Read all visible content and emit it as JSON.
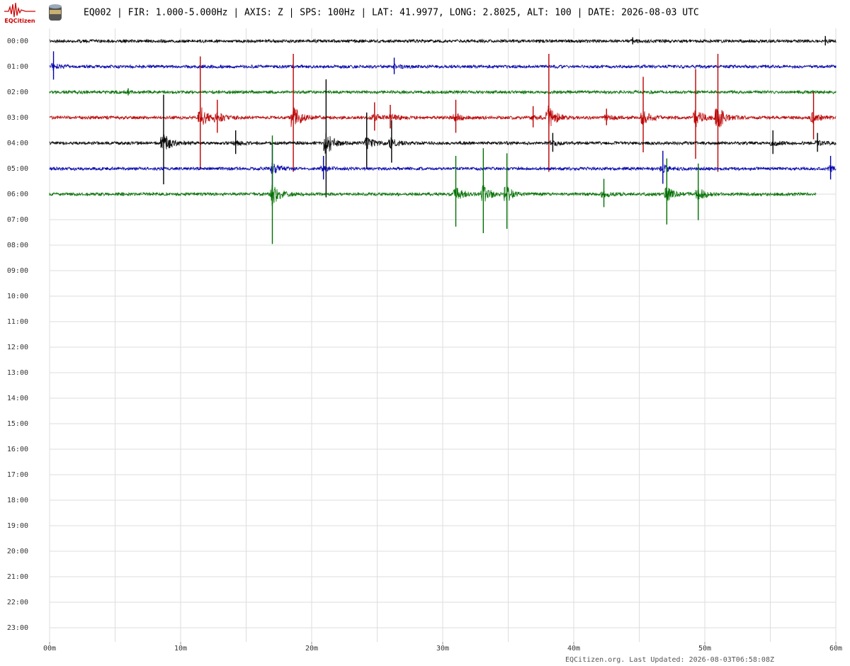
{
  "header": {
    "logo_text": "EQCitizen",
    "title": "EQ002 | FIR: 1.000-5.000Hz | AXIS: Z | SPS: 100Hz | LAT: 41.9977, LONG: 2.8025, ALT: 100 | DATE: 2026-08-03 UTC"
  },
  "chart_data": {
    "type": "helicorder",
    "rows": [
      "00:00",
      "01:00",
      "02:00",
      "03:00",
      "04:00",
      "05:00",
      "06:00",
      "07:00",
      "08:00",
      "09:00",
      "10:00",
      "11:00",
      "12:00",
      "13:00",
      "14:00",
      "15:00",
      "16:00",
      "17:00",
      "18:00",
      "19:00",
      "20:00",
      "21:00",
      "22:00",
      "23:00"
    ],
    "xlim": [
      0,
      60
    ],
    "xticks": [
      {
        "value": 0,
        "label": "00m"
      },
      {
        "value": 10,
        "label": "10m"
      },
      {
        "value": 20,
        "label": "20m"
      },
      {
        "value": 30,
        "label": "30m"
      },
      {
        "value": 40,
        "label": "40m"
      },
      {
        "value": 50,
        "label": "50m"
      },
      {
        "value": 60,
        "label": "60m"
      }
    ],
    "xgrid": [
      0,
      5,
      10,
      15,
      20,
      25,
      30,
      35,
      40,
      45,
      50,
      55,
      60
    ],
    "grid": true,
    "traces": [
      {
        "color": "#000000",
        "end": 60,
        "events": [
          [
            59.2,
            0.2
          ],
          [
            44.5,
            0.15
          ]
        ]
      },
      {
        "color": "#0000aa",
        "end": 60,
        "events": [
          [
            0.3,
            0.6
          ],
          [
            26.3,
            0.35
          ]
        ]
      },
      {
        "color": "#006f00",
        "end": 60,
        "events": [
          [
            6,
            0.15
          ]
        ]
      },
      {
        "color": "#bb0000",
        "end": 60,
        "events": [
          [
            11.5,
            2.4
          ],
          [
            12.8,
            0.7
          ],
          [
            18.6,
            2.5
          ],
          [
            24.8,
            0.6
          ],
          [
            26,
            0.5
          ],
          [
            31,
            0.7
          ],
          [
            36.9,
            0.45
          ],
          [
            38.1,
            2.5
          ],
          [
            42.5,
            0.35
          ],
          [
            45.3,
            1.6
          ],
          [
            49.3,
            1.9
          ],
          [
            51,
            2.5
          ],
          [
            58.3,
            1.0
          ]
        ]
      },
      {
        "color": "#000000",
        "end": 60,
        "events": [
          [
            8.7,
            1.9
          ],
          [
            14.2,
            0.5
          ],
          [
            21.1,
            2.5
          ],
          [
            24.2,
            1.2
          ],
          [
            26.1,
            0.9
          ],
          [
            38.4,
            0.4
          ],
          [
            55.2,
            0.5
          ],
          [
            58.6,
            0.4
          ]
        ]
      },
      {
        "color": "#0000aa",
        "end": 60,
        "events": [
          [
            17,
            1.0
          ],
          [
            20.9,
            0.5
          ],
          [
            46.8,
            0.7
          ],
          [
            59.6,
            0.5
          ]
        ]
      },
      {
        "color": "#006f00",
        "end": 58.5,
        "events": [
          [
            17,
            2.3
          ],
          [
            31,
            1.5
          ],
          [
            33.1,
            1.8
          ],
          [
            34.9,
            1.6
          ],
          [
            42.3,
            0.6
          ],
          [
            47.1,
            1.4
          ],
          [
            49.5,
            1.2
          ]
        ]
      }
    ]
  },
  "footer": "EQCitizen.org. Last Updated: 2026-08-03T06:58:08Z"
}
